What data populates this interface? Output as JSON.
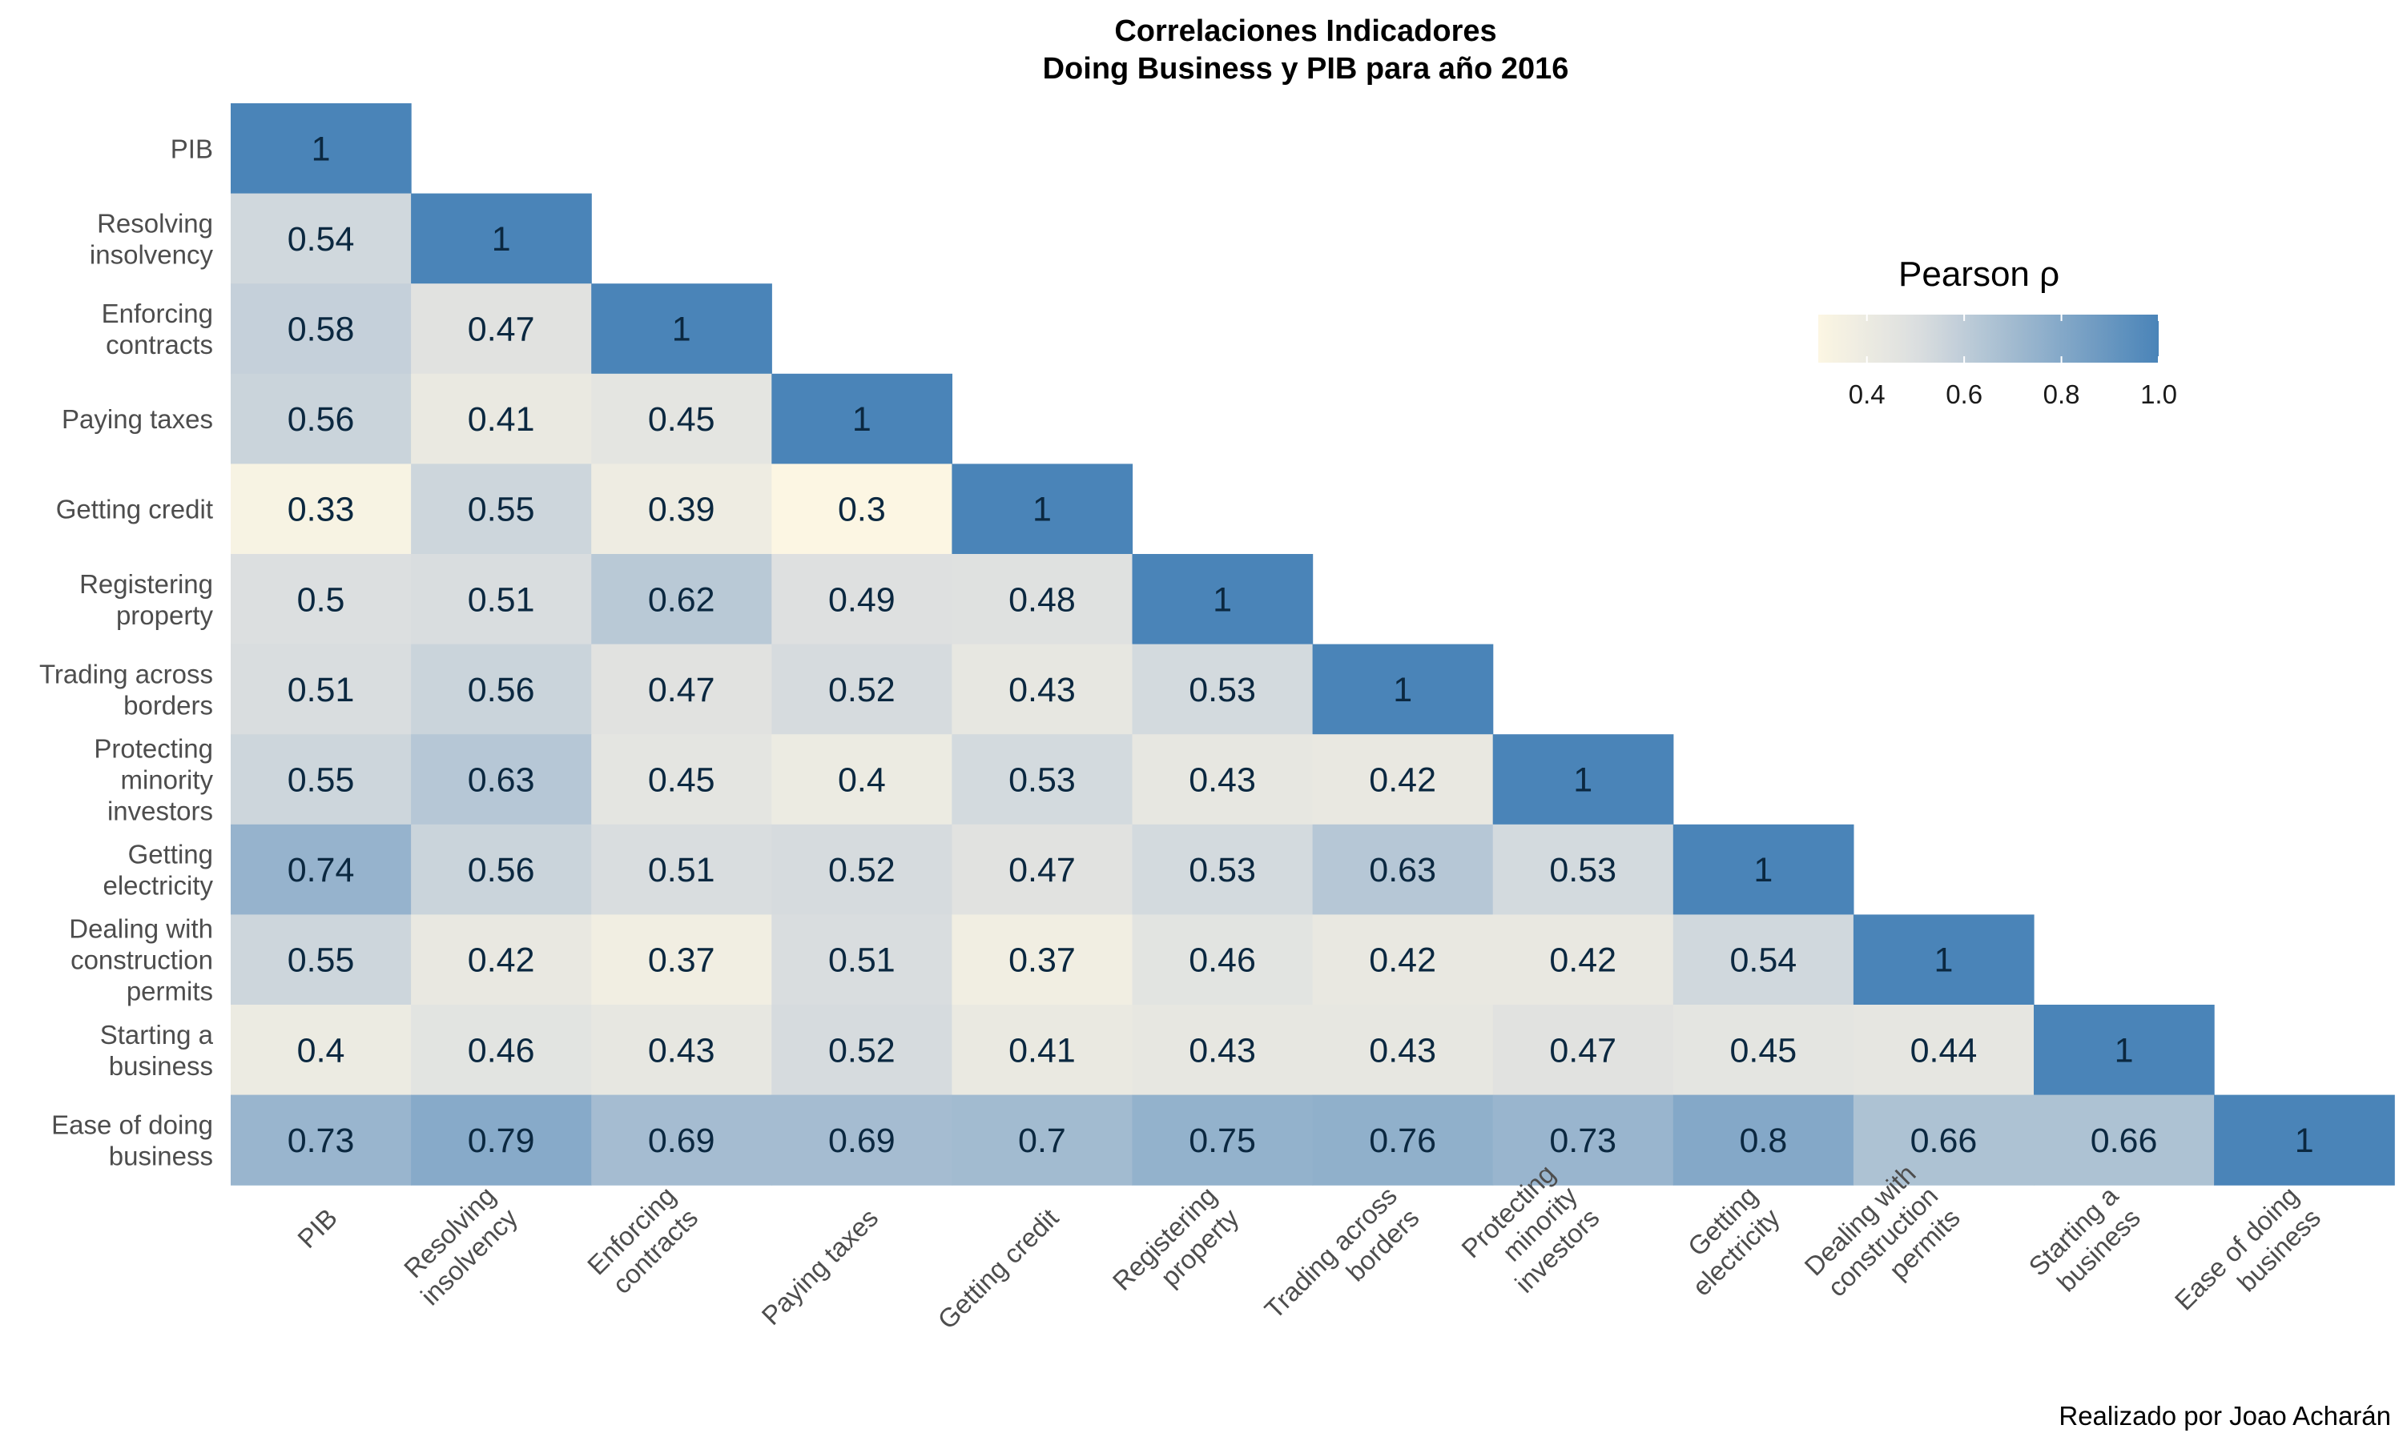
{
  "chart_data": {
    "type": "heatmap",
    "title": "Correlaciones Indicadores",
    "subtitle": "Doing Business y PIB para año 2016",
    "caption": "Realizado por Joao Acharán",
    "variables": [
      [
        "PIB"
      ],
      [
        "Resolving",
        "insolvency"
      ],
      [
        "Enforcing",
        "contracts"
      ],
      [
        "Paying taxes"
      ],
      [
        "Getting credit"
      ],
      [
        "Registering",
        "property"
      ],
      [
        "Trading across",
        "borders"
      ],
      [
        "Protecting",
        "minority",
        "investors"
      ],
      [
        "Getting",
        "electricity"
      ],
      [
        "Dealing with",
        "construction",
        "permits"
      ],
      [
        "Starting a",
        "business"
      ],
      [
        "Ease of doing",
        "business"
      ]
    ],
    "matrix": [
      [
        1
      ],
      [
        0.54,
        1
      ],
      [
        0.58,
        0.47,
        1
      ],
      [
        0.56,
        0.41,
        0.45,
        1
      ],
      [
        0.33,
        0.55,
        0.39,
        0.3,
        1
      ],
      [
        0.5,
        0.51,
        0.62,
        0.49,
        0.48,
        1
      ],
      [
        0.51,
        0.56,
        0.47,
        0.52,
        0.43,
        0.53,
        1
      ],
      [
        0.55,
        0.63,
        0.45,
        0.4,
        0.53,
        0.43,
        0.42,
        1
      ],
      [
        0.74,
        0.56,
        0.51,
        0.52,
        0.47,
        0.53,
        0.63,
        0.53,
        1
      ],
      [
        0.55,
        0.42,
        0.37,
        0.51,
        0.37,
        0.46,
        0.42,
        0.42,
        0.54,
        1
      ],
      [
        0.4,
        0.46,
        0.43,
        0.52,
        0.41,
        0.43,
        0.43,
        0.47,
        0.45,
        0.44,
        1
      ],
      [
        0.73,
        0.79,
        0.69,
        0.69,
        0.7,
        0.75,
        0.76,
        0.73,
        0.8,
        0.66,
        0.66,
        1
      ]
    ],
    "legend": {
      "title": "Pearson ρ",
      "position": "top-right",
      "range": [
        0.3,
        1.0
      ],
      "ticks": [
        0.4,
        0.6,
        0.8,
        1.0
      ],
      "tick_labels": [
        "0.4",
        "0.6",
        "0.8",
        "1.0"
      ]
    },
    "colors": {
      "low": "#fcf6e3",
      "mid": "#dcdfe0",
      "high": "#4a84b8",
      "text": "#0b2840",
      "axis_text": "#4d4d4d"
    }
  }
}
